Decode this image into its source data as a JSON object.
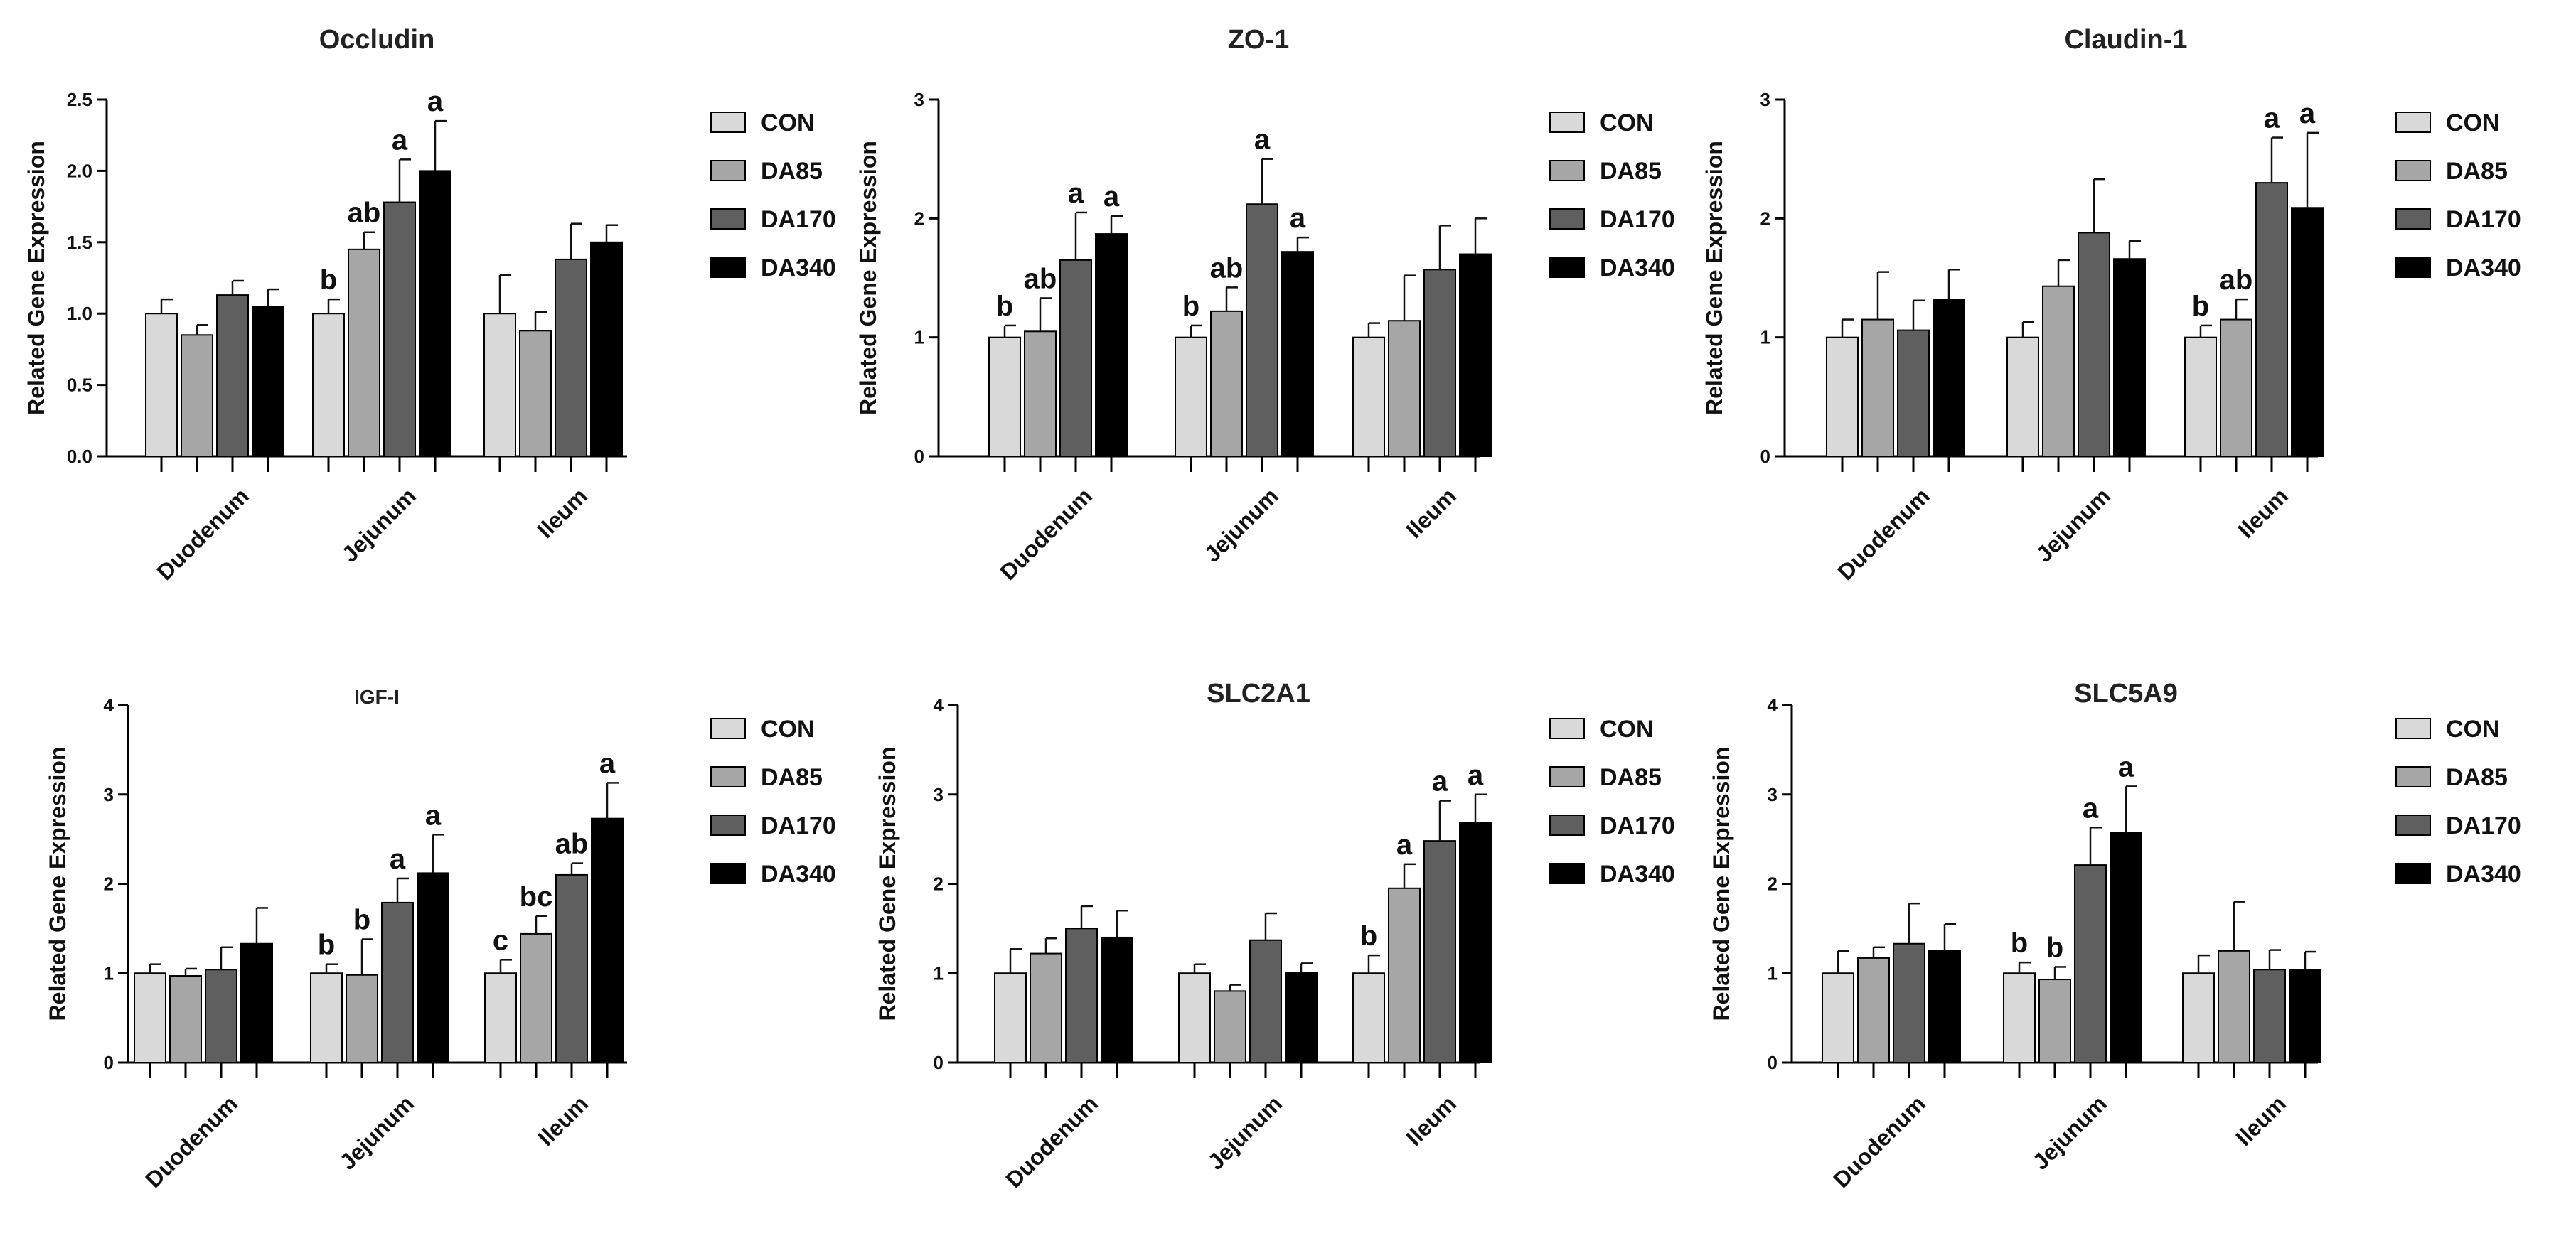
{
  "colors": [
    "#d9d9d9",
    "#a6a6a6",
    "#5f5f5f",
    "#000000"
  ],
  "chart_data": [
    {
      "type": "bar",
      "title": "Occludin",
      "xlabel": "",
      "ylabel": "Related Gene Expression",
      "ylim": [
        0,
        2.5
      ],
      "yticks": [
        "0.0",
        "0.5",
        "1.0",
        "1.5",
        "2.0",
        "2.5"
      ],
      "legend_position": "right",
      "categories": [
        "Duodenum",
        "Jejunum",
        "Ileum"
      ],
      "series": [
        {
          "name": "CON",
          "values": [
            1.0,
            1.0,
            1.0
          ],
          "errors": [
            0.1,
            0.1,
            0.27
          ],
          "labels": [
            "",
            "b",
            ""
          ]
        },
        {
          "name": "DA85",
          "values": [
            0.85,
            1.45,
            0.88
          ],
          "errors": [
            0.07,
            0.12,
            0.13
          ],
          "labels": [
            "",
            "ab",
            ""
          ]
        },
        {
          "name": "DA170",
          "values": [
            1.13,
            1.78,
            1.38
          ],
          "errors": [
            0.1,
            0.3,
            0.25
          ],
          "labels": [
            "",
            "a",
            ""
          ]
        },
        {
          "name": "DA340",
          "values": [
            1.05,
            2.0,
            1.5
          ],
          "errors": [
            0.12,
            0.35,
            0.12
          ],
          "labels": [
            "",
            "a",
            ""
          ]
        }
      ]
    },
    {
      "type": "bar",
      "title": "ZO-1",
      "xlabel": "",
      "ylabel": "Related Gene Expression",
      "ylim": [
        0,
        3
      ],
      "yticks": [
        "0",
        "1",
        "2",
        "3"
      ],
      "legend_position": "right",
      "categories": [
        "Duodenum",
        "Jejunum",
        "Ileum"
      ],
      "series": [
        {
          "name": "CON",
          "values": [
            1.0,
            1.0,
            1.0
          ],
          "errors": [
            0.1,
            0.1,
            0.12
          ],
          "labels": [
            "b",
            "b",
            ""
          ]
        },
        {
          "name": "DA85",
          "values": [
            1.05,
            1.22,
            1.14
          ],
          "errors": [
            0.28,
            0.2,
            0.38
          ],
          "labels": [
            "ab",
            "ab",
            ""
          ]
        },
        {
          "name": "DA170",
          "values": [
            1.65,
            2.12,
            1.57
          ],
          "errors": [
            0.4,
            0.38,
            0.37
          ],
          "labels": [
            "a",
            "a",
            ""
          ]
        },
        {
          "name": "DA340",
          "values": [
            1.87,
            1.72,
            1.7
          ],
          "errors": [
            0.15,
            0.12,
            0.3
          ],
          "labels": [
            "a",
            "a",
            ""
          ]
        }
      ]
    },
    {
      "type": "bar",
      "title": "Claudin-1",
      "xlabel": "",
      "ylabel": "Related Gene Expression",
      "ylim": [
        0,
        3
      ],
      "yticks": [
        "0",
        "1",
        "2",
        "3"
      ],
      "legend_position": "right",
      "categories": [
        "Duodenum",
        "Jejunum",
        "Ileum"
      ],
      "series": [
        {
          "name": "CON",
          "values": [
            1.0,
            1.0,
            1.0
          ],
          "errors": [
            0.15,
            0.13,
            0.1
          ],
          "labels": [
            "",
            "",
            "b"
          ]
        },
        {
          "name": "DA85",
          "values": [
            1.15,
            1.43,
            1.15
          ],
          "errors": [
            0.4,
            0.22,
            0.17
          ],
          "labels": [
            "",
            "",
            "ab"
          ]
        },
        {
          "name": "DA170",
          "values": [
            1.06,
            1.88,
            2.3
          ],
          "errors": [
            0.25,
            0.45,
            0.38
          ],
          "labels": [
            "",
            "",
            "a"
          ]
        },
        {
          "name": "DA340",
          "values": [
            1.32,
            1.66,
            2.09
          ],
          "errors": [
            0.25,
            0.15,
            0.63
          ],
          "labels": [
            "",
            "",
            "a"
          ]
        }
      ]
    },
    {
      "type": "bar",
      "title": "IGF-I",
      "xlabel": "",
      "ylabel": "Related Gene Expression",
      "ylim": [
        0,
        4
      ],
      "yticks": [
        "0",
        "1",
        "2",
        "3",
        "4"
      ],
      "legend_position": "right",
      "categories": [
        "Duodenum",
        "Jejunum",
        "Ileum"
      ],
      "series": [
        {
          "name": "CON",
          "values": [
            1.0,
            1.0,
            1.0
          ],
          "errors": [
            0.1,
            0.1,
            0.15
          ],
          "labels": [
            "",
            "b",
            "c"
          ]
        },
        {
          "name": "DA85",
          "values": [
            0.97,
            0.98,
            1.44
          ],
          "errors": [
            0.08,
            0.4,
            0.2
          ],
          "labels": [
            "",
            "b",
            "bc"
          ]
        },
        {
          "name": "DA170",
          "values": [
            1.04,
            1.79,
            2.1
          ],
          "errors": [
            0.25,
            0.27,
            0.13
          ],
          "labels": [
            "",
            "a",
            "ab"
          ]
        },
        {
          "name": "DA340",
          "values": [
            1.33,
            2.12,
            2.73
          ],
          "errors": [
            0.4,
            0.43,
            0.4
          ],
          "labels": [
            "",
            "a",
            "a"
          ]
        }
      ]
    },
    {
      "type": "bar",
      "title": "SLC2A1",
      "xlabel": "",
      "ylabel": "Related Gene Expression",
      "ylim": [
        0,
        4
      ],
      "yticks": [
        "0",
        "1",
        "2",
        "3",
        "4"
      ],
      "legend_position": "right",
      "categories": [
        "Duodenum",
        "Jejunum",
        "Ileum"
      ],
      "series": [
        {
          "name": "CON",
          "values": [
            1.0,
            1.0,
            1.0
          ],
          "errors": [
            0.27,
            0.1,
            0.2
          ],
          "labels": [
            "",
            "",
            "b"
          ]
        },
        {
          "name": "DA85",
          "values": [
            1.22,
            0.8,
            1.95
          ],
          "errors": [
            0.17,
            0.07,
            0.27
          ],
          "labels": [
            "",
            "",
            "a"
          ]
        },
        {
          "name": "DA170",
          "values": [
            1.5,
            1.37,
            2.48
          ],
          "errors": [
            0.25,
            0.3,
            0.45
          ],
          "labels": [
            "",
            "",
            "a"
          ]
        },
        {
          "name": "DA340",
          "values": [
            1.4,
            1.01,
            2.68
          ],
          "errors": [
            0.3,
            0.1,
            0.32
          ],
          "labels": [
            "",
            "",
            "a"
          ]
        }
      ]
    },
    {
      "type": "bar",
      "title": "SLC5A9",
      "xlabel": "",
      "ylabel": "Related Gene Expression",
      "ylim": [
        0,
        4
      ],
      "yticks": [
        "0",
        "1",
        "2",
        "3",
        "4"
      ],
      "legend_position": "right",
      "categories": [
        "Duodenum",
        "Jejunum",
        "Ileum"
      ],
      "series": [
        {
          "name": "CON",
          "values": [
            1.0,
            1.0,
            1.0
          ],
          "errors": [
            0.25,
            0.12,
            0.2
          ],
          "labels": [
            "",
            "b",
            ""
          ]
        },
        {
          "name": "DA85",
          "values": [
            1.17,
            0.93,
            1.25
          ],
          "errors": [
            0.12,
            0.14,
            0.55
          ],
          "labels": [
            "",
            "b",
            ""
          ]
        },
        {
          "name": "DA170",
          "values": [
            1.33,
            2.21,
            1.04
          ],
          "errors": [
            0.45,
            0.42,
            0.22
          ],
          "labels": [
            "",
            "a",
            ""
          ]
        },
        {
          "name": "DA340",
          "values": [
            1.25,
            2.57,
            1.04
          ],
          "errors": [
            0.3,
            0.52,
            0.2
          ],
          "labels": [
            "",
            "a",
            ""
          ]
        }
      ]
    }
  ]
}
